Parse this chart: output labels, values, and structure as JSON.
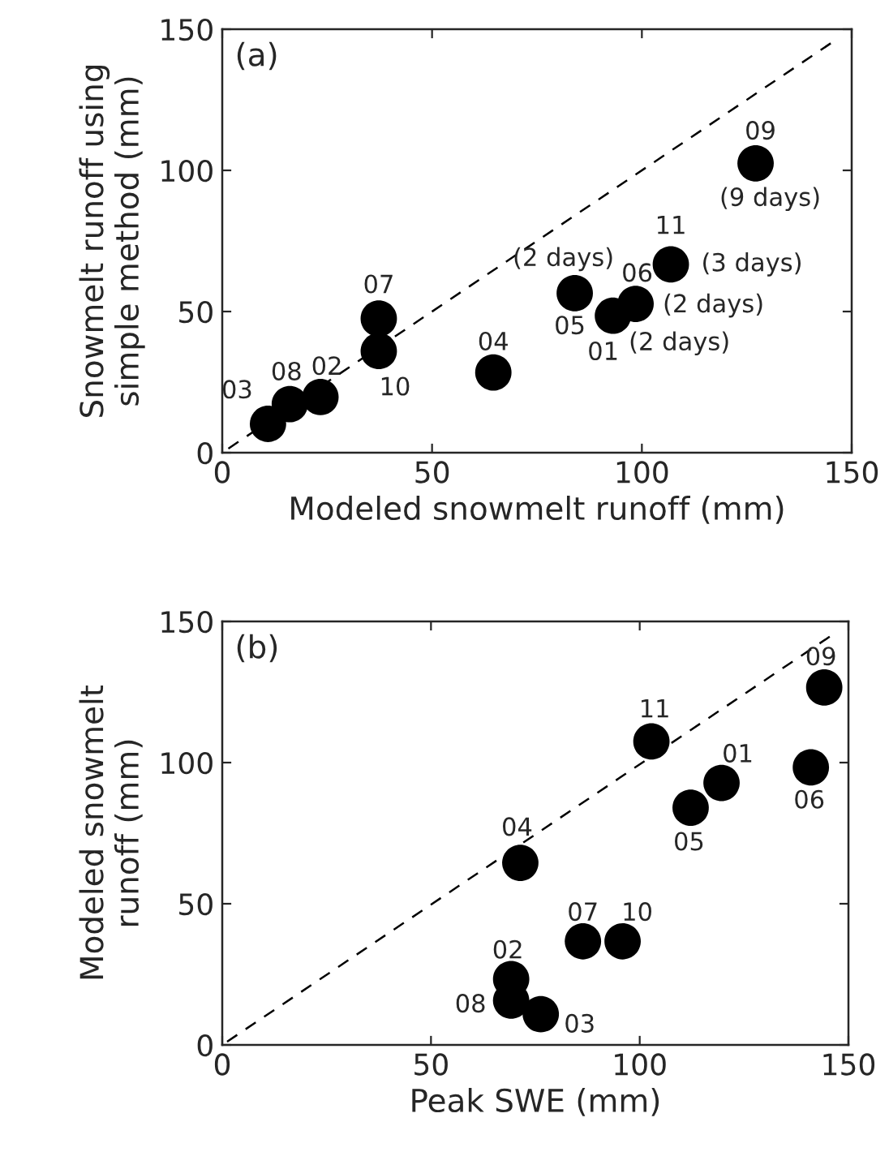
{
  "chart_data": [
    {
      "type": "scatter",
      "xlabel": "Modeled snowmelt runoff (mm)",
      "ylabel": "Snowmelt runoff using\nsimple method (mm)",
      "xlim": [
        0,
        150
      ],
      "ylim": [
        0,
        150
      ],
      "xticks": [
        0,
        50,
        100,
        150
      ],
      "yticks": [
        0,
        50,
        100,
        150
      ],
      "grid": false,
      "legend": false,
      "series": [
        {
          "type": "scatter",
          "color": "#000000",
          "marker": "circle",
          "x": [
            10.9,
            16.1,
            23.4,
            37.3,
            37.3,
            64.6,
            84.0,
            93.1,
            98.5,
            106.9,
            127.1
          ],
          "values": [
            10.2,
            17.2,
            19.7,
            47.5,
            36.0,
            28.4,
            56.5,
            48.5,
            52.7,
            66.7,
            102.5
          ]
        },
        {
          "type": "line",
          "color": "#000000",
          "line_style": "dashed",
          "marker": "none",
          "x": [
            145,
            0
          ],
          "values": [
            145,
            0
          ]
        }
      ],
      "annotations": [
        "(a)",
        {
          "text": "03",
          "x": 10.9,
          "y": 10.2
        },
        {
          "text": "08",
          "x": 16.1,
          "y": 17.2
        },
        {
          "text": "02",
          "x": 23.4,
          "y": 19.7
        },
        {
          "text": "07",
          "x": 37.3,
          "y": 47.5
        },
        {
          "text": "10",
          "x": 37.3,
          "y": 36.0
        },
        {
          "text": "04",
          "x": 64.6,
          "y": 28.4
        },
        {
          "text": "05",
          "x": 84.0,
          "y": 56.5
        },
        {
          "text": "(2 days)",
          "x": 84.0,
          "y": 56.5
        },
        {
          "text": "01",
          "x": 93.1,
          "y": 48.5
        },
        {
          "text": "(2 days)",
          "x": 93.1,
          "y": 48.5
        },
        {
          "text": "06",
          "x": 98.5,
          "y": 52.7
        },
        {
          "text": "(2 days)",
          "x": 98.5,
          "y": 52.7
        },
        {
          "text": "11",
          "x": 106.9,
          "y": 66.7
        },
        {
          "text": "(3 days)",
          "x": 106.9,
          "y": 66.7
        },
        {
          "text": "09",
          "x": 127.1,
          "y": 102.5
        },
        {
          "text": "(9 days)",
          "x": 127.1,
          "y": 102.5
        }
      ]
    },
    {
      "type": "scatter",
      "xlabel": "Peak SWE (mm)",
      "ylabel": "Modeled snowmelt\nrunoff (mm)",
      "xlim": [
        0,
        150
      ],
      "ylim": [
        0,
        150
      ],
      "xticks": [
        0,
        50,
        100,
        150
      ],
      "yticks": [
        0,
        50,
        100,
        150
      ],
      "grid": false,
      "legend": false,
      "series": [
        {
          "type": "scatter",
          "color": "#000000",
          "marker": "circle",
          "x": [
            76.3,
            69.2,
            69.2,
            86.4,
            95.9,
            71.4,
            112.2,
            119.6,
            141.0,
            102.8,
            144.2
          ],
          "values": [
            10.9,
            15.7,
            23.3,
            36.7,
            36.7,
            64.5,
            84.0,
            92.8,
            98.3,
            107.5,
            126.6
          ]
        },
        {
          "type": "line",
          "color": "#000000",
          "line_style": "dashed",
          "marker": "none",
          "x": [
            145.5,
            0
          ],
          "values": [
            144.6,
            0
          ]
        }
      ],
      "annotations": [
        "(b)",
        {
          "text": "03",
          "x": 76.3,
          "y": 10.9
        },
        {
          "text": "08",
          "x": 69.2,
          "y": 15.7
        },
        {
          "text": "02",
          "x": 69.2,
          "y": 23.3
        },
        {
          "text": "07",
          "x": 86.4,
          "y": 36.7
        },
        {
          "text": "10",
          "x": 95.9,
          "y": 36.7
        },
        {
          "text": "04",
          "x": 71.4,
          "y": 64.5
        },
        {
          "text": "05",
          "x": 112.2,
          "y": 84.0
        },
        {
          "text": "01",
          "x": 119.6,
          "y": 92.8
        },
        {
          "text": "06",
          "x": 141.0,
          "y": 98.3
        },
        {
          "text": "11",
          "x": 102.8,
          "y": 107.5
        },
        {
          "text": "09",
          "x": 144.2,
          "y": 126.6
        }
      ]
    }
  ]
}
